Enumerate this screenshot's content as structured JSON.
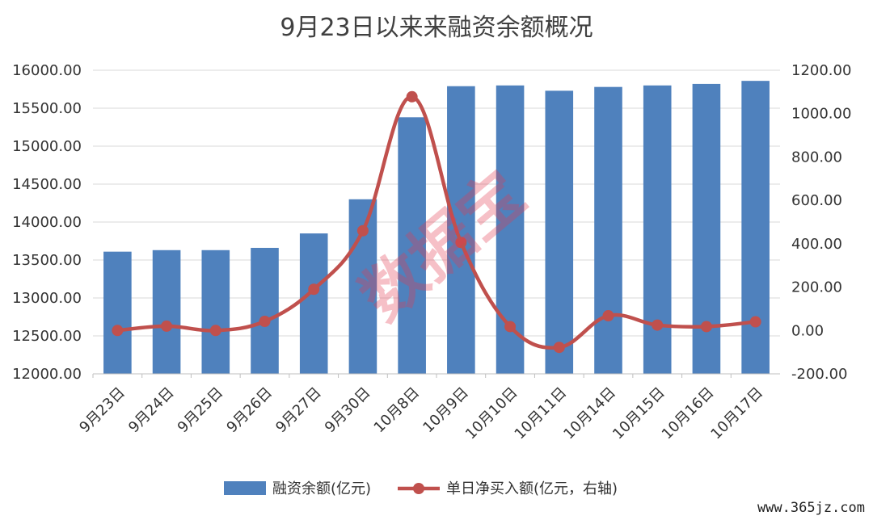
{
  "chart_data": {
    "type": "bar",
    "title": "9月23日以来来融资余额概况",
    "categories": [
      "9月23日",
      "9月24日",
      "9月25日",
      "9月26日",
      "9月27日",
      "9月30日",
      "10月8日",
      "10月9日",
      "10月10日",
      "10月11日",
      "10月14日",
      "10月15日",
      "10月16日",
      "10月17日"
    ],
    "series": [
      {
        "name": "融资余额(亿元)",
        "type": "bar",
        "axis": "left",
        "color": "#4f81bd",
        "values": [
          13610,
          13630,
          13630,
          13660,
          13850,
          14300,
          15380,
          15790,
          15800,
          15730,
          15780,
          15800,
          15820,
          15860
        ]
      },
      {
        "name": "单日净买入额(亿元，右轴)",
        "type": "line",
        "axis": "right",
        "color": "#c0504d",
        "values": [
          0,
          20,
          0,
          42,
          190,
          460,
          1078,
          406,
          18,
          -78,
          68,
          25,
          18,
          40
        ]
      }
    ],
    "y_left": {
      "min": 12000,
      "max": 16000,
      "ticks": [
        12000,
        12500,
        13000,
        13500,
        14000,
        14500,
        15000,
        15500,
        16000
      ],
      "tick_labels": [
        "12000.00",
        "12500.00",
        "13000.00",
        "13500.00",
        "14000.00",
        "14500.00",
        "15000.00",
        "15500.00",
        "16000.00"
      ]
    },
    "y_right": {
      "min": -200,
      "max": 1200,
      "ticks": [
        -200,
        0,
        200,
        400,
        600,
        800,
        1000,
        1200
      ],
      "tick_labels": [
        "-200.00",
        "0.00",
        "200.00",
        "400.00",
        "600.00",
        "800.00",
        "1000.00",
        "1200.00"
      ]
    },
    "grid": true,
    "legend_position": "bottom"
  },
  "watermark": "数据宝",
  "source": "www.365jz.com"
}
